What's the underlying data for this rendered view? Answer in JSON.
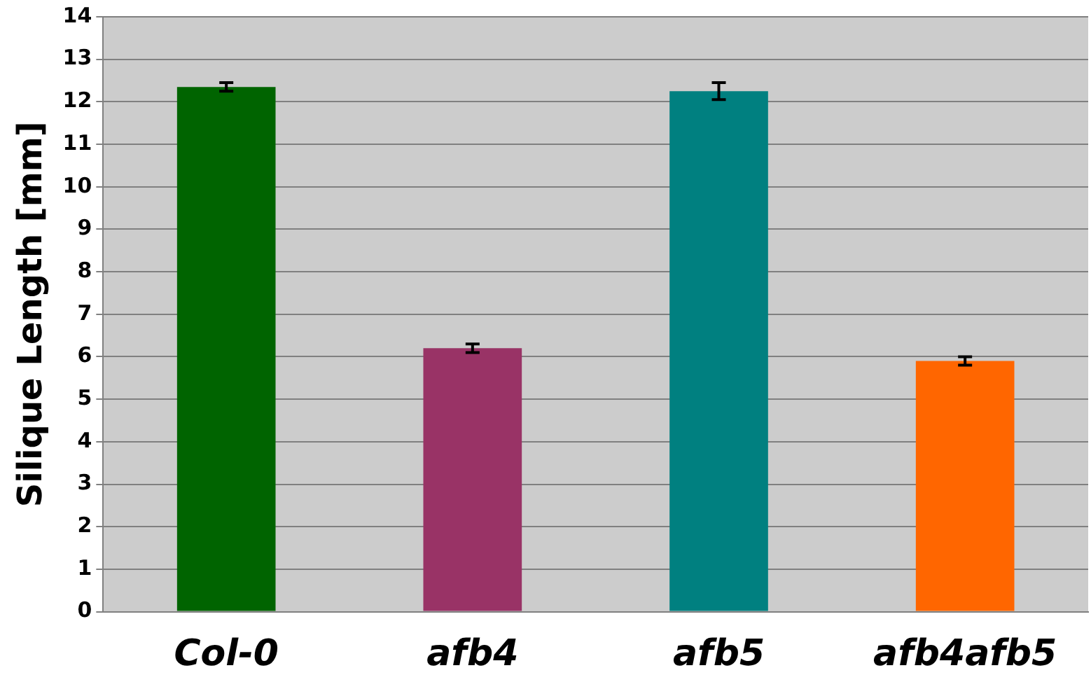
{
  "chart_data": {
    "type": "bar",
    "ylabel": "Silique Length [mm]",
    "categories": [
      "Col-0",
      "afb4",
      "afb5",
      "afb4afb5"
    ],
    "values": [
      12.35,
      6.2,
      12.25,
      5.9
    ],
    "colors": [
      "#006400",
      "#993366",
      "#008080",
      "#ff6600"
    ],
    "errors": [
      0.1,
      0.1,
      0.2,
      0.1
    ],
    "ylim": [
      0,
      14
    ],
    "yticks": [
      0,
      1,
      2,
      3,
      4,
      5,
      6,
      7,
      8,
      9,
      10,
      11,
      12,
      13,
      14
    ],
    "grid": "y",
    "legend": false
  }
}
